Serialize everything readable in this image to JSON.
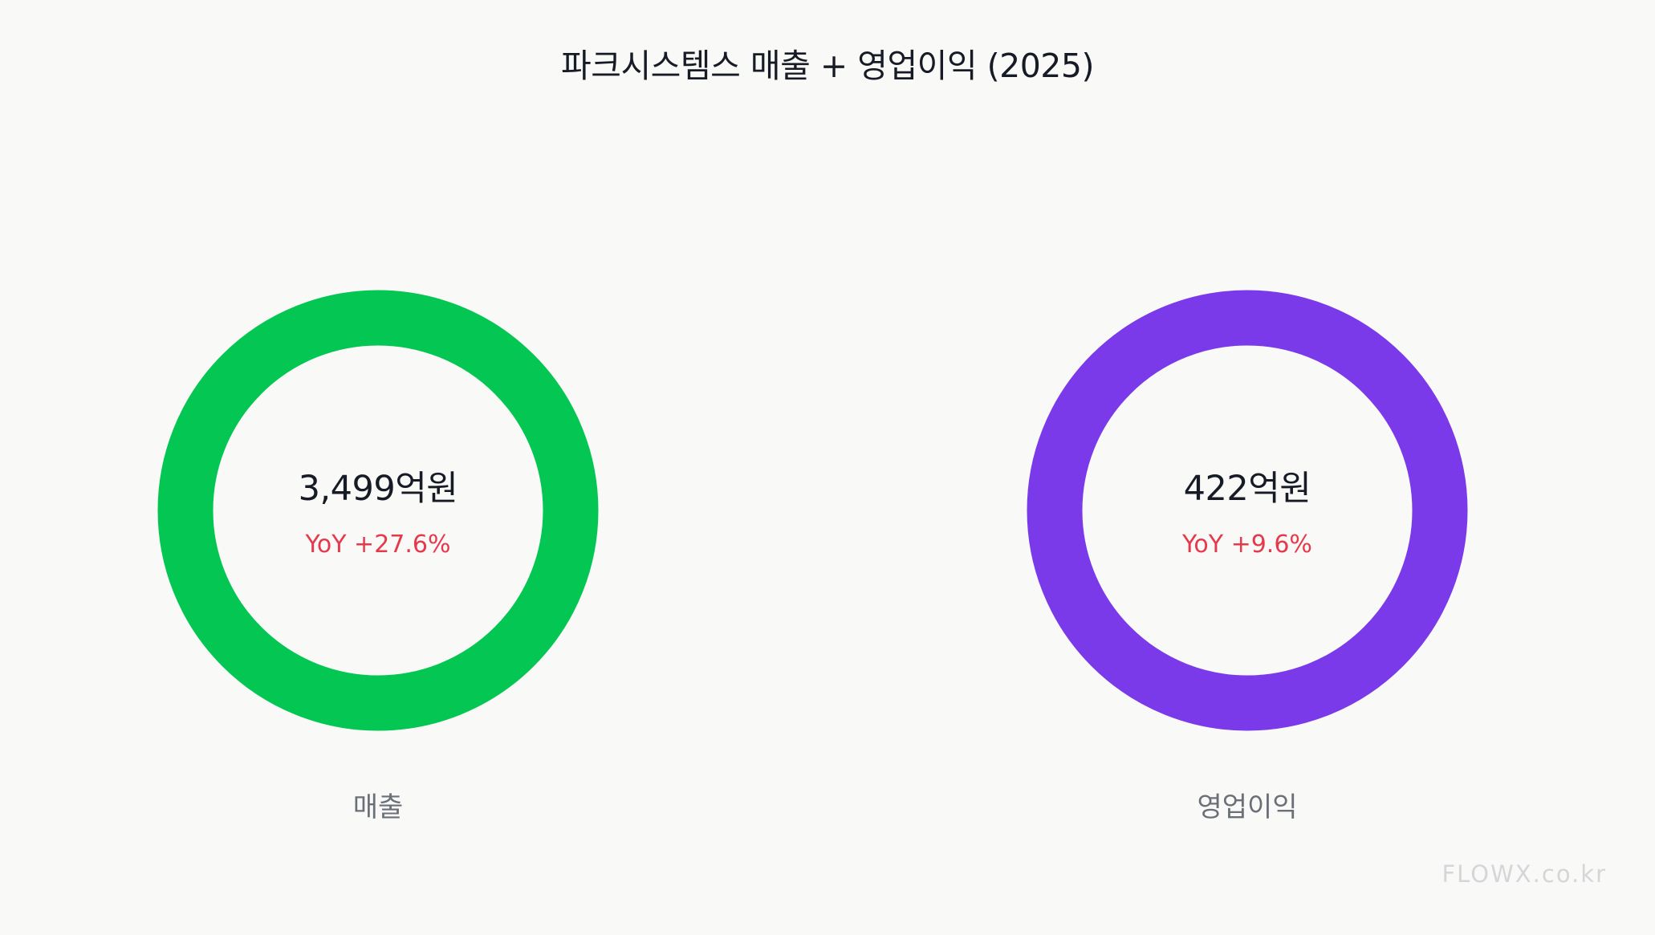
{
  "chart_data": {
    "type": "pie",
    "title": "파크시스템스  매출 + 영업이익 (2025)",
    "series": [
      {
        "name": "매출",
        "value_label": "3,499억원",
        "value": 3499,
        "unit": "억원",
        "yoy_label": "YoY +27.6%",
        "yoy": 27.6,
        "color": "#03c752"
      },
      {
        "name": "영업이익",
        "value_label": "422억원",
        "value": 422,
        "unit": "억원",
        "yoy_label": "YoY +9.6%",
        "yoy": 9.6,
        "color": "#7b3aea"
      }
    ],
    "yoy_color": "#e5394c"
  },
  "watermark": "FLOWX.co.kr"
}
